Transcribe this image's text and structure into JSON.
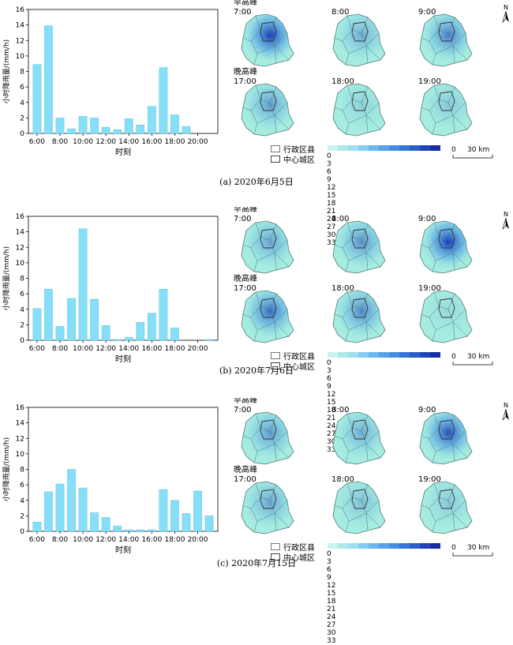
{
  "panels": [
    {
      "caption": "(a) 2020年6月5日",
      "chart_data": {
        "type": "bar",
        "ylabel": "小时降雨量/(mm/h)",
        "xlabel": "时刻",
        "ylim": [
          0,
          16
        ],
        "yticks": [
          0,
          2,
          4,
          6,
          8,
          10,
          12,
          14,
          16
        ],
        "tick_labels": [
          "6:00",
          "8:00",
          "10:00",
          "12:00",
          "14:00",
          "16:00",
          "18:00",
          "20:00"
        ],
        "categories": [
          "6:00",
          "7:00",
          "8:00",
          "9:00",
          "10:00",
          "11:00",
          "12:00",
          "13:00",
          "14:00",
          "15:00",
          "16:00",
          "17:00",
          "18:00",
          "19:00",
          "20:00",
          "21:00"
        ],
        "values": [
          8.9,
          13.9,
          2.0,
          0.6,
          2.2,
          2.0,
          0.8,
          0.5,
          1.9,
          1.1,
          3.5,
          8.5,
          2.4,
          0.9,
          0,
          0
        ]
      },
      "map_labels": {
        "morning": "早高峰",
        "evening": "晚高峰",
        "times": [
          "7:00",
          "8:00",
          "9:00",
          "17:00",
          "18:00",
          "19:00"
        ]
      },
      "intensity": [
        0.95,
        0.35,
        0.6,
        0.45,
        0.15,
        0.2
      ]
    },
    {
      "caption": "(b) 2020年7月6日",
      "chart_data": {
        "type": "bar",
        "ylabel": "小时降雨量/(mm/h)",
        "xlabel": "时刻",
        "ylim": [
          0,
          16
        ],
        "yticks": [
          0,
          2,
          4,
          6,
          8,
          10,
          12,
          14,
          16
        ],
        "tick_labels": [
          "6:00",
          "8:00",
          "10:00",
          "12:00",
          "14:00",
          "16:00",
          "18:00",
          "20:00"
        ],
        "categories": [
          "6:00",
          "7:00",
          "8:00",
          "9:00",
          "10:00",
          "11:00",
          "12:00",
          "13:00",
          "14:00",
          "15:00",
          "16:00",
          "17:00",
          "18:00",
          "19:00",
          "20:00",
          "21:00"
        ],
        "values": [
          4.1,
          6.6,
          1.8,
          5.4,
          14.4,
          5.3,
          1.9,
          0.1,
          0.4,
          2.3,
          3.5,
          6.6,
          1.6,
          0,
          0,
          0.1
        ]
      },
      "map_labels": {
        "morning": "早高峰",
        "evening": "晚高峰",
        "times": [
          "7:00",
          "8:00",
          "9:00",
          "17:00",
          "18:00",
          "19:00"
        ]
      },
      "intensity": [
        0.4,
        0.5,
        0.95,
        0.7,
        0.55,
        0.1
      ]
    },
    {
      "caption": "(c) 2020年7月15日",
      "chart_data": {
        "type": "bar",
        "ylabel": "小时降雨量/(mm/h)",
        "xlabel": "时刻",
        "ylim": [
          0,
          16
        ],
        "yticks": [
          0,
          2,
          4,
          6,
          8,
          10,
          12,
          14,
          16
        ],
        "tick_labels": [
          "6:00",
          "8:00",
          "10:00",
          "12:00",
          "14:00",
          "16:00",
          "18:00",
          "20:00"
        ],
        "categories": [
          "6:00",
          "7:00",
          "8:00",
          "9:00",
          "10:00",
          "11:00",
          "12:00",
          "13:00",
          "14:00",
          "15:00",
          "16:00",
          "17:00",
          "18:00",
          "19:00",
          "20:00",
          "21:00"
        ],
        "values": [
          1.2,
          5.1,
          6.1,
          8.0,
          5.6,
          2.4,
          1.8,
          0.7,
          0.2,
          0.2,
          0.2,
          5.4,
          4.0,
          2.3,
          5.2,
          2.0
        ]
      },
      "map_labels": {
        "morning": "早高峰",
        "evening": "晚高峰",
        "times": [
          "7:00",
          "8:00",
          "9:00",
          "17:00",
          "18:00",
          "19:00"
        ]
      },
      "intensity": [
        0.45,
        0.35,
        0.85,
        0.4,
        0.25,
        0.2
      ]
    }
  ],
  "legend": {
    "district": "行政区县",
    "center": "中心城区",
    "ramp_labels": "0 3 6 9 12 15 18 21 24 27 30 33",
    "ramp_colors": [
      "#c8f3ee",
      "#aeeae6",
      "#9ddff0",
      "#85cdf2",
      "#6cb8ee",
      "#55a3e8",
      "#448fe2",
      "#3676d7",
      "#2a5fcb",
      "#1f44b9",
      "#172ea0"
    ],
    "scale_text": "0     30 km"
  },
  "north": "N",
  "colors": {
    "bar": "#86dff7",
    "bar_edge": "#5bc6e6",
    "map_base": "#a6ece0",
    "map_line": "#4d7a74",
    "rain_dark": "#0b2fb8"
  }
}
